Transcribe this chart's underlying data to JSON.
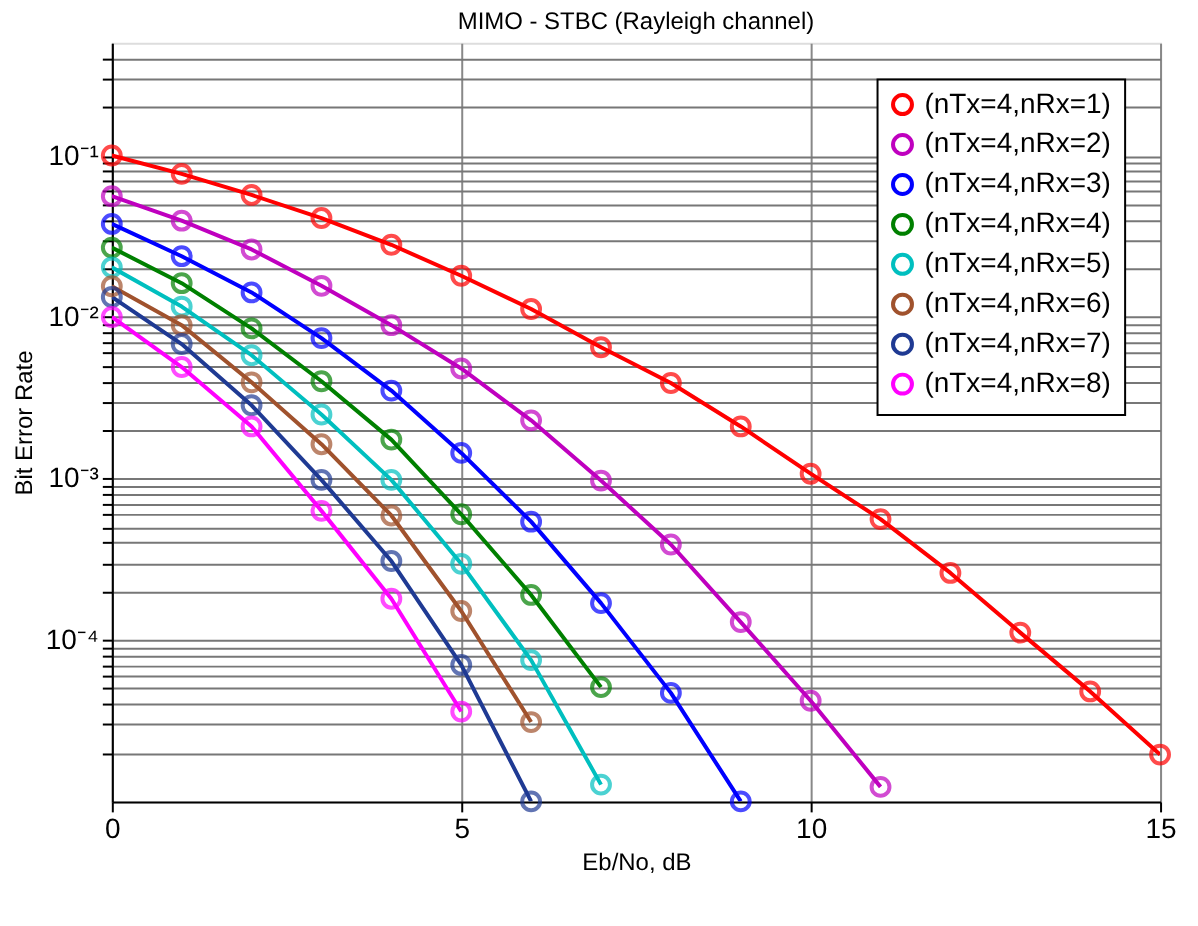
{
  "chart_data": {
    "type": "line",
    "title": "MIMO - STBC (Rayleigh channel)",
    "xlabel": "Eb/No, dB",
    "ylabel": "Bit Error Rate",
    "log": "y",
    "grid": true,
    "legend": "top right",
    "marker": "circle",
    "line_style": "solid",
    "xlim": [
      0,
      15
    ],
    "xticks": [
      0,
      5,
      10,
      15
    ],
    "ylim": [
      1e-05,
      0.5
    ],
    "yticks": [
      {
        "value": 2e-05,
        "label": null
      },
      {
        "value": 3e-05,
        "label": null
      },
      {
        "value": 4e-05,
        "label": null
      },
      {
        "value": 5e-05,
        "label": null
      },
      {
        "value": 6e-05,
        "label": null
      },
      {
        "value": 7e-05,
        "label": null
      },
      {
        "value": 8e-05,
        "label": null
      },
      {
        "value": 9e-05,
        "label": null
      },
      {
        "value": 0.0001,
        "label": "10⁻⁴"
      },
      {
        "value": 0.0002,
        "label": null
      },
      {
        "value": 0.0003,
        "label": null
      },
      {
        "value": 0.0004,
        "label": null
      },
      {
        "value": 0.0005,
        "label": null
      },
      {
        "value": 0.0006,
        "label": null
      },
      {
        "value": 0.0007,
        "label": null
      },
      {
        "value": 0.0008,
        "label": null
      },
      {
        "value": 0.0009,
        "label": null
      },
      {
        "value": 0.001,
        "label": "10⁻³"
      },
      {
        "value": 0.002,
        "label": null
      },
      {
        "value": 0.003,
        "label": null
      },
      {
        "value": 0.004,
        "label": null
      },
      {
        "value": 0.005,
        "label": null
      },
      {
        "value": 0.006,
        "label": null
      },
      {
        "value": 0.007,
        "label": null
      },
      {
        "value": 0.008,
        "label": null
      },
      {
        "value": 0.009,
        "label": null
      },
      {
        "value": 0.01,
        "label": "10⁻²"
      },
      {
        "value": 0.02,
        "label": null
      },
      {
        "value": 0.03,
        "label": null
      },
      {
        "value": 0.04,
        "label": null
      },
      {
        "value": 0.05,
        "label": null
      },
      {
        "value": 0.06,
        "label": null
      },
      {
        "value": 0.07,
        "label": null
      },
      {
        "value": 0.08,
        "label": null
      },
      {
        "value": 0.09,
        "label": null
      },
      {
        "value": 0.1,
        "label": "10⁻¹"
      },
      {
        "value": 0.2,
        "label": null
      },
      {
        "value": 0.3,
        "label": null
      },
      {
        "value": 0.4,
        "label": null
      }
    ],
    "series": [
      {
        "name": "(nTx=4,nRx=1)",
        "color": "#ff0000",
        "x": [
          0,
          1,
          2,
          3,
          4,
          5,
          6,
          7,
          8,
          9,
          10,
          11,
          12,
          13,
          14,
          15
        ],
        "values": [
          0.1,
          0.077,
          0.057,
          0.041,
          0.028,
          0.018,
          0.0112,
          0.0065,
          0.0039,
          0.0021,
          0.00107,
          0.00056,
          0.00026,
          0.000111,
          4.8e-05,
          1.95e-05
        ]
      },
      {
        "name": "(nTx=4,nRx=2)",
        "color": "#bf00bf",
        "x": [
          0,
          1,
          2,
          3,
          4,
          5,
          6,
          7,
          8,
          9,
          10,
          11
        ],
        "values": [
          0.056,
          0.0395,
          0.0262,
          0.0156,
          0.0089,
          0.0048,
          0.00229,
          0.00097,
          0.00039,
          0.000129,
          4.2e-05,
          1.23e-05
        ]
      },
      {
        "name": "(nTx=4,nRx=3)",
        "color": "#0000ff",
        "x": [
          0,
          1,
          2,
          3,
          4,
          5,
          6,
          7,
          8,
          9
        ],
        "values": [
          0.0377,
          0.0238,
          0.0142,
          0.0074,
          0.0035,
          0.00144,
          0.00054,
          0.000169,
          4.7e-05,
          1e-05
        ]
      },
      {
        "name": "(nTx=4,nRx=4)",
        "color": "#008000",
        "x": [
          0,
          1,
          2,
          3,
          4,
          5,
          6,
          7
        ],
        "values": [
          0.0269,
          0.0162,
          0.0085,
          0.004,
          0.00174,
          0.0006,
          0.00019,
          5.1e-05
        ]
      },
      {
        "name": "(nTx=4,nRx=5)",
        "color": "#00bfbf",
        "x": [
          0,
          1,
          2,
          3,
          4,
          5,
          6,
          7
        ],
        "values": [
          0.0203,
          0.0116,
          0.0058,
          0.00249,
          0.00098,
          0.000296,
          7.5e-05,
          1.27e-05
        ]
      },
      {
        "name": "(nTx=4,nRx=6)",
        "color": "#a0522d",
        "x": [
          0,
          1,
          2,
          3,
          4,
          5,
          6
        ],
        "values": [
          0.0155,
          0.0089,
          0.00394,
          0.00163,
          0.00059,
          0.000151,
          3.1e-05
        ]
      },
      {
        "name": "(nTx=4,nRx=7)",
        "color": "#1f3a93",
        "x": [
          0,
          1,
          2,
          3,
          4,
          5,
          6
        ],
        "values": [
          0.0133,
          0.0068,
          0.00284,
          0.00098,
          0.000308,
          7e-05,
          1e-05
        ]
      },
      {
        "name": "(nTx=4,nRx=8)",
        "color": "#ff00ff",
        "x": [
          0,
          1,
          2,
          3,
          4,
          5
        ],
        "values": [
          0.01,
          0.0049,
          0.0021,
          0.00063,
          0.00018,
          3.6e-05
        ]
      }
    ]
  }
}
